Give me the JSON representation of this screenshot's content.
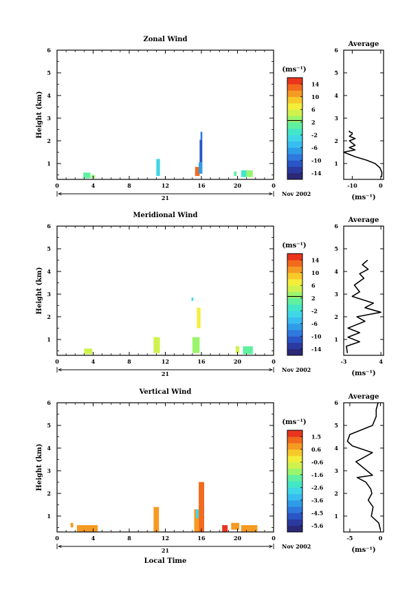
{
  "chart_data": [
    {
      "type": "heatmap",
      "title": "Zonal Wind",
      "ylabel": "Height (km)",
      "xlabel": "",
      "date_label": "21",
      "date_right": "Nov 2002",
      "xlim": [
        0,
        24
      ],
      "ylim": [
        0.3,
        6
      ],
      "x_ticks": [
        "0",
        "4",
        "8",
        "12",
        "16",
        "20",
        "0"
      ],
      "y_ticks": [
        "1",
        "2",
        "3",
        "4",
        "5",
        "6"
      ],
      "colorbar": {
        "unit": "(ms⁻¹)",
        "ticks": [
          "14",
          "10",
          "6",
          "2",
          "-2",
          "-6",
          "-10",
          "-14"
        ],
        "range": [
          -16,
          16
        ],
        "zero_line": 2.5
      },
      "cells": [
        {
          "x": 2.9,
          "y": 0.35,
          "w": 0.8,
          "h": 0.25,
          "v": 1
        },
        {
          "x": 3.8,
          "y": 0.35,
          "w": 0.4,
          "h": 0.15,
          "v": 3
        },
        {
          "x": 11.0,
          "y": 0.45,
          "w": 0.4,
          "h": 0.75,
          "v": -4
        },
        {
          "x": 15.3,
          "y": 0.45,
          "w": 0.5,
          "h": 0.4,
          "v": 12
        },
        {
          "x": 15.7,
          "y": 0.55,
          "w": 0.4,
          "h": 0.5,
          "v": -8
        },
        {
          "x": 15.8,
          "y": 1.05,
          "w": 0.3,
          "h": 1.0,
          "v": -12
        },
        {
          "x": 15.9,
          "y": 2.05,
          "w": 0.2,
          "h": 0.35,
          "v": -10
        },
        {
          "x": 19.6,
          "y": 0.45,
          "w": 0.3,
          "h": 0.2,
          "v": 0
        },
        {
          "x": 20.4,
          "y": 0.4,
          "w": 0.6,
          "h": 0.3,
          "v": -2
        },
        {
          "x": 21.0,
          "y": 0.4,
          "w": 0.7,
          "h": 0.3,
          "v": 2
        }
      ],
      "profile": {
        "title": "Average",
        "xlabel": "(ms⁻¹)",
        "xlim": [
          -13,
          1
        ],
        "x_ticks": [
          "-10",
          "0"
        ],
        "x": [
          0.3,
          0.4,
          -0.2,
          -2,
          -5,
          -9,
          -11,
          -13,
          -9,
          -11,
          -9,
          -10,
          -11,
          -9,
          -11,
          -10,
          -10,
          -11,
          -11
        ],
        "y": [
          0.4,
          0.6,
          0.8,
          1.0,
          1.15,
          1.3,
          1.4,
          1.5,
          1.6,
          1.7,
          1.8,
          1.9,
          2.0,
          2.1,
          2.2,
          2.3,
          2.35,
          2.4,
          2.45
        ]
      }
    },
    {
      "type": "heatmap",
      "title": "Meridional Wind",
      "ylabel": "Height (km)",
      "xlabel": "",
      "date_label": "21",
      "date_right": "Nov 2002",
      "xlim": [
        0,
        24
      ],
      "ylim": [
        0.3,
        6
      ],
      "x_ticks": [
        "0",
        "4",
        "8",
        "12",
        "16",
        "20",
        "0"
      ],
      "y_ticks": [
        "1",
        "2",
        "3",
        "4",
        "5",
        "6"
      ],
      "colorbar": {
        "unit": "(ms⁻¹)",
        "ticks": [
          "14",
          "10",
          "6",
          "2",
          "-2",
          "-6",
          "-10",
          "-14"
        ],
        "range": [
          -16,
          16
        ],
        "zero_line": 2.5
      },
      "cells": [
        {
          "x": 3.0,
          "y": 0.35,
          "w": 0.9,
          "h": 0.25,
          "v": 4
        },
        {
          "x": 10.7,
          "y": 0.4,
          "w": 0.7,
          "h": 0.7,
          "v": 5
        },
        {
          "x": 15.0,
          "y": 0.4,
          "w": 0.8,
          "h": 0.7,
          "v": 3
        },
        {
          "x": 15.5,
          "y": 1.5,
          "w": 0.4,
          "h": 0.9,
          "v": 6
        },
        {
          "x": 14.9,
          "y": 2.7,
          "w": 0.2,
          "h": 0.15,
          "v": -3
        },
        {
          "x": 19.8,
          "y": 0.4,
          "w": 0.4,
          "h": 0.3,
          "v": 5
        },
        {
          "x": 20.6,
          "y": 0.35,
          "w": 1.1,
          "h": 0.35,
          "v": 1
        }
      ],
      "profile": {
        "title": "Average",
        "xlabel": "(ms⁻¹)",
        "xlim": [
          -3,
          4.5
        ],
        "x_ticks": [
          "-3",
          "4"
        ],
        "x": [
          -2.3,
          -2.5,
          0,
          -2.2,
          0,
          -2.2,
          1,
          -0.5,
          4,
          1,
          2.6,
          -1.4,
          0,
          -1,
          0.8,
          0,
          1.6,
          0.5,
          1.5
        ],
        "y": [
          0.4,
          0.7,
          0.9,
          1.1,
          1.3,
          1.5,
          1.8,
          2.0,
          2.2,
          2.4,
          2.6,
          2.9,
          3.1,
          3.4,
          3.7,
          3.9,
          4.1,
          4.3,
          4.5
        ]
      }
    },
    {
      "type": "heatmap",
      "title": "Vertical Wind",
      "ylabel": "Height (km)",
      "xlabel": "Local Time",
      "date_label": "21",
      "date_right": "Nov 2002",
      "xlim": [
        0,
        24
      ],
      "ylim": [
        0.3,
        6
      ],
      "x_ticks": [
        "0",
        "4",
        "8",
        "12",
        "16",
        "20",
        "0"
      ],
      "y_ticks": [
        "1",
        "2",
        "3",
        "4",
        "5",
        "6"
      ],
      "colorbar": {
        "unit": "(ms⁻¹)",
        "ticks": [
          "1.5",
          "0.6",
          "-0.6",
          "-1.6",
          "-2.6",
          "-3.6",
          "-4.5",
          "-5.6"
        ],
        "range": [
          -6,
          2
        ]
      },
      "cells": [
        {
          "x": 1.5,
          "y": 0.5,
          "w": 0.3,
          "h": 0.2,
          "v": 0.6
        },
        {
          "x": 2.2,
          "y": 0.3,
          "w": 2.3,
          "h": 0.3,
          "v": 0.6
        },
        {
          "x": 10.7,
          "y": 0.3,
          "w": 0.6,
          "h": 1.1,
          "v": 0.9
        },
        {
          "x": 15.2,
          "y": 0.3,
          "w": 0.5,
          "h": 1.0,
          "v": 0.6
        },
        {
          "x": 15.4,
          "y": 0.9,
          "w": 0.3,
          "h": 0.4,
          "v": -3.0
        },
        {
          "x": 15.7,
          "y": 0.3,
          "w": 0.6,
          "h": 2.2,
          "v": 1.0
        },
        {
          "x": 18.3,
          "y": 0.3,
          "w": 0.6,
          "h": 0.3,
          "v": 1.5
        },
        {
          "x": 19.3,
          "y": 0.4,
          "w": 0.9,
          "h": 0.3,
          "v": 0.9
        },
        {
          "x": 20.4,
          "y": 0.3,
          "w": 1.8,
          "h": 0.3,
          "v": 0.7
        }
      ],
      "profile": {
        "title": "Average",
        "xlabel": "(ms⁻¹)",
        "xlim": [
          -6,
          0.5
        ],
        "x_ticks": [
          "-5",
          "0"
        ],
        "x": [
          0,
          -0.3,
          -1.5,
          -1.2,
          -2.0,
          -1.4,
          -1.6,
          -2.4,
          -3.8,
          -1.3,
          -4.0,
          -1.3,
          -4.6,
          -5.4,
          -5.0,
          -1.3,
          -0.7,
          -0.7,
          -0.4
        ],
        "y": [
          0.4,
          0.7,
          1.0,
          1.4,
          1.7,
          2.0,
          2.2,
          2.5,
          2.7,
          2.8,
          3.4,
          3.8,
          4.1,
          4.3,
          4.6,
          5.0,
          5.4,
          5.7,
          6.0
        ]
      }
    }
  ]
}
